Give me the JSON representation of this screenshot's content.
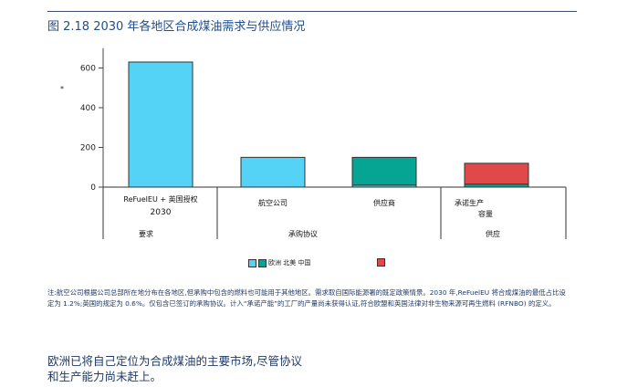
{
  "figure": {
    "title": "图 2.18 2030 年各地区合成煤油需求与供应情况"
  },
  "chart_data": {
    "type": "bar",
    "ylabel": "*",
    "yticks": [
      0,
      200,
      400,
      600
    ],
    "ylim": [
      0,
      700
    ],
    "colors": {
      "europe": "#55d3f7",
      "north_america": "#05a493",
      "china": "#e04949",
      "outline": "#333333"
    },
    "groups": [
      {
        "label": "要求",
        "subgroups": [
          {
            "label": "ReFuelEU + 英国授权",
            "label2": "2030"
          }
        ]
      },
      {
        "label": "承购协议",
        "subgroups": [
          {
            "label": "航空公司"
          },
          {
            "label": "供应商"
          }
        ]
      },
      {
        "label": "供应",
        "subgroups": [
          {
            "label": "承诺生产",
            "label2": "容量"
          }
        ]
      }
    ],
    "series": [
      {
        "name": "欧洲",
        "values": [
          630,
          150,
          10,
          0
        ]
      },
      {
        "name": "北美",
        "values": [
          0,
          0,
          140,
          15
        ]
      },
      {
        "name": "中国",
        "values": [
          0,
          0,
          0,
          105
        ]
      }
    ]
  },
  "legend": {
    "text": "欧洲 北美 中国"
  },
  "notes": {
    "text": "注:航空公司根据公司总部所在地分布在各地区,但承购中包含的燃料也可能用于其他地区。需求取自国际能源署的既定政策情景。2030 年,ReFuelEU 将合成煤油的最低占比设定为 1.2%;英国的规定为 0.6%。仅包含已签订的承购协议。计入“承诺产能”的工厂的产量尚未获得认证,符合欧盟和英国法律对非生物来源可再生燃料 (RFNBO) 的定义。"
  },
  "tagline": {
    "text": "欧洲已将自己定位为合成煤油的主要市场,尽管协议和生产能力尚未赶上。"
  }
}
